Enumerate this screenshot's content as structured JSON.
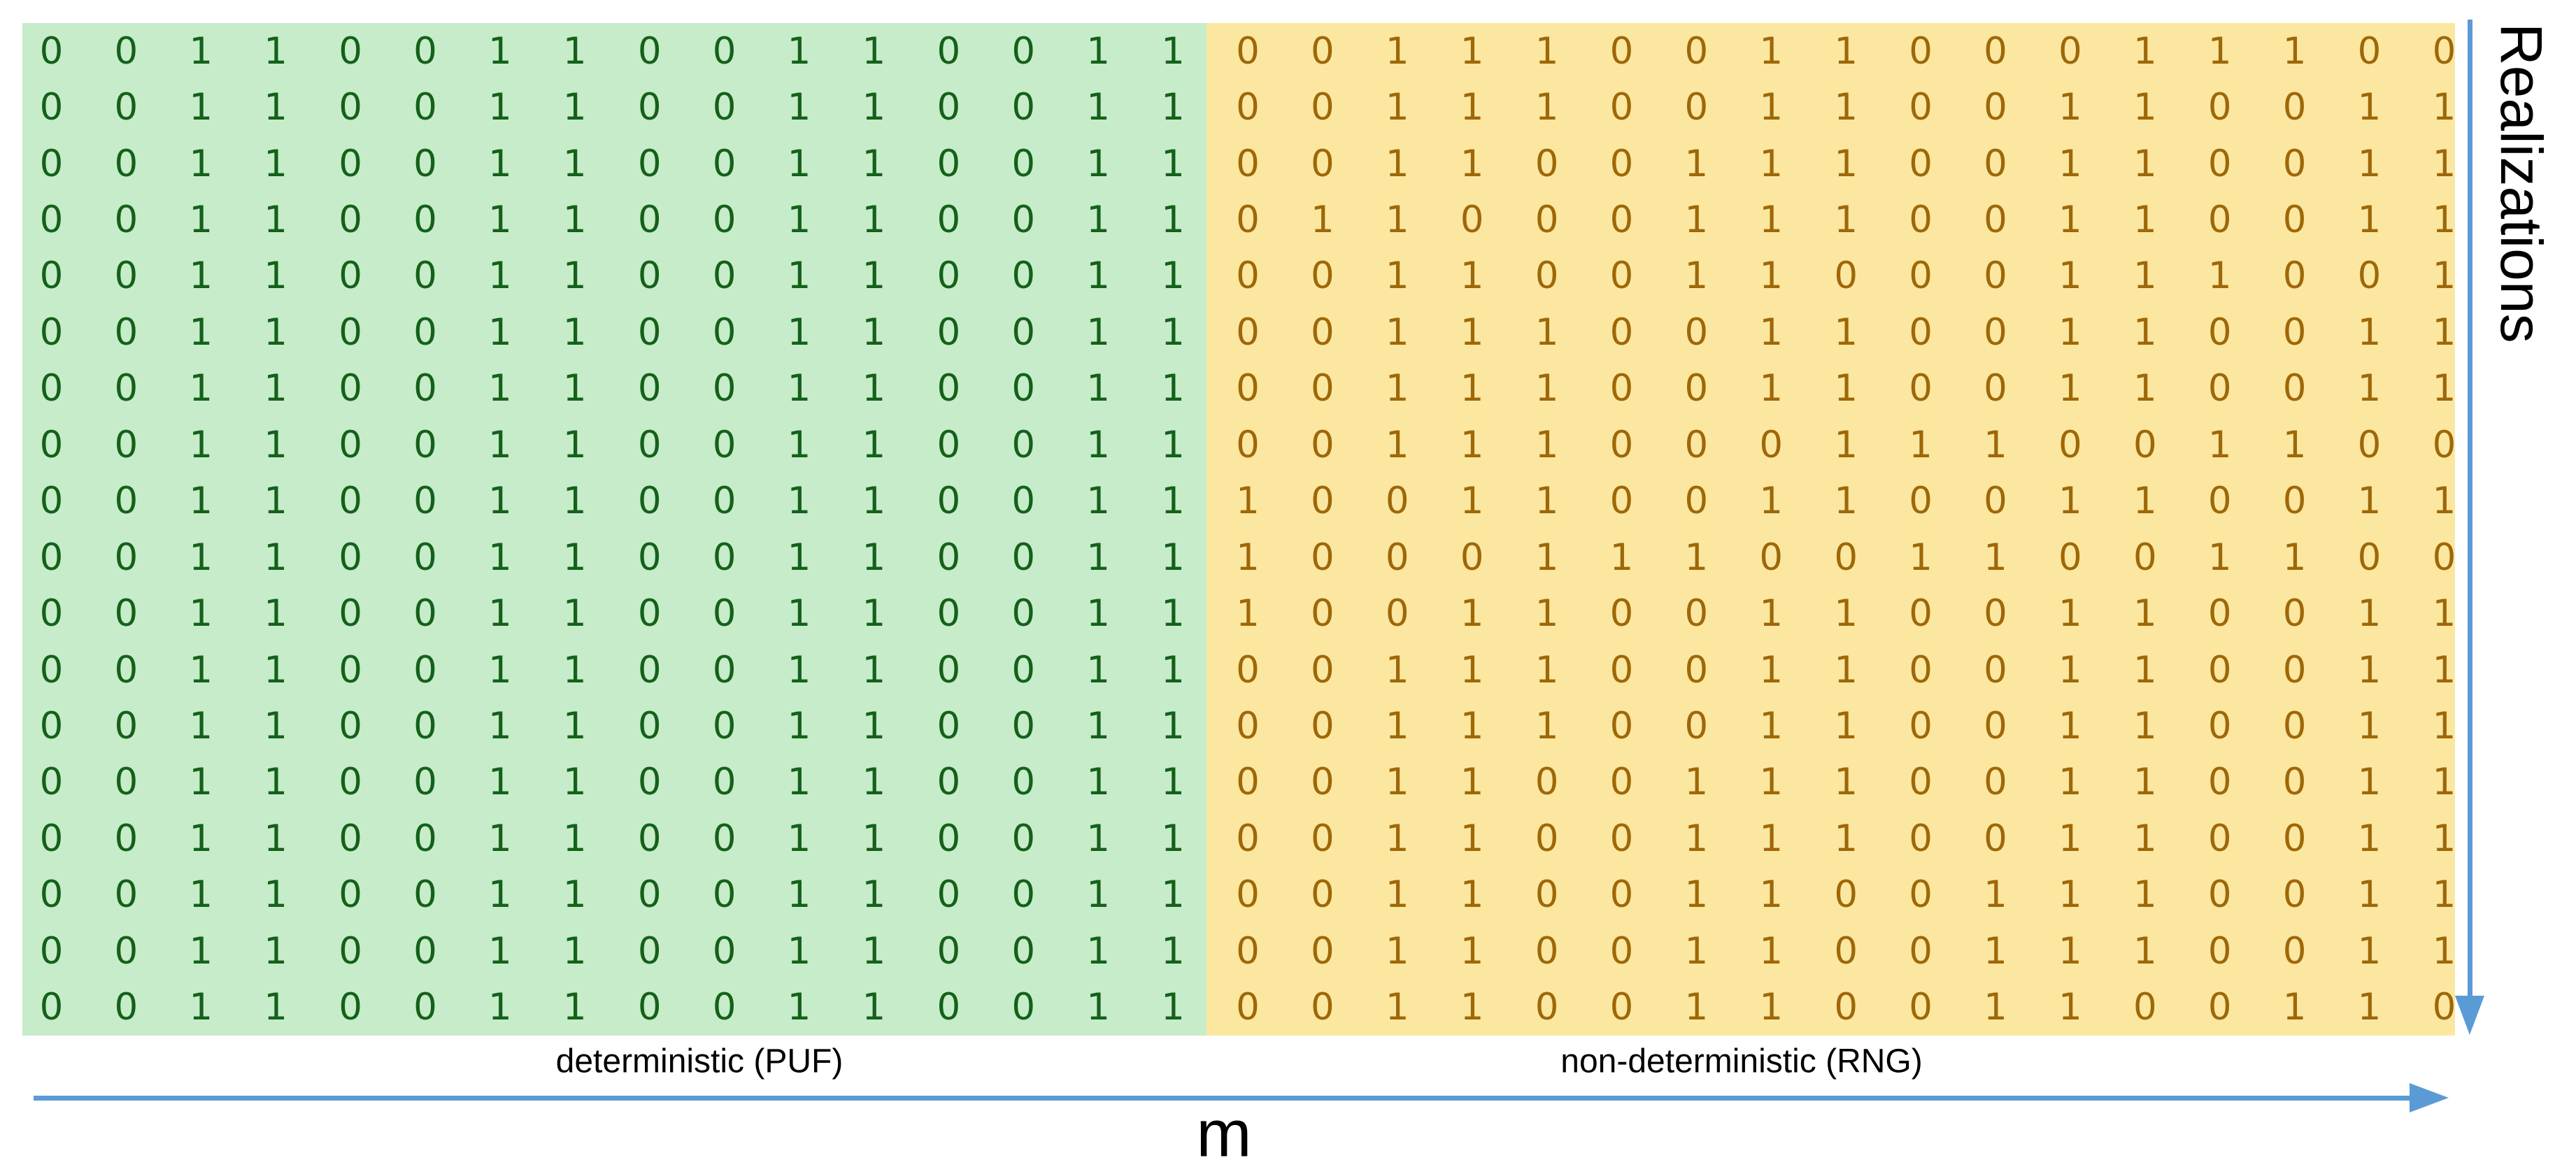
{
  "labels": {
    "left_region": "deterministic (PUF)",
    "right_region": "non-deterministic (RNG)",
    "x_axis": "m",
    "y_axis": "Realizations"
  },
  "matrix": {
    "rows": 18,
    "green_cols": 16,
    "yellow_cols": 17,
    "green_rows": [
      "0011001100110011",
      "0011001100110011",
      "0011001100110011",
      "0011001100110011",
      "0011001100110011",
      "0011001100110011",
      "0011001100110011",
      "0011001100110011",
      "0011001100110011",
      "0011001100110011",
      "0011001100110011",
      "0011001100110011",
      "0011001100110011",
      "0011001100110011",
      "0011001100110011",
      "0011001100110011",
      "0011001100110011",
      "0011001100110011"
    ],
    "yellow_rows": [
      "00111001100011100",
      "00111001100110011",
      "00110011100110011",
      "01100011100110011",
      "00110011000111001",
      "00111001100110011",
      "00111001100110011",
      "00111000111001100",
      "10011001100110011",
      "10001110011001100",
      "10011001100110011",
      "00111001100110011",
      "00111001100110011",
      "00110011100110011",
      "00110011100110011",
      "00110011001110011",
      "00110011001110011",
      "00110011001100110"
    ]
  },
  "colors": {
    "green_bg": "#c7ecca",
    "green_digit": "#14611a",
    "yellow_bg": "#fbe7a0",
    "yellow_digit": "#9e6708",
    "arrow": "#5b9bd5",
    "label_text": "#000000"
  }
}
